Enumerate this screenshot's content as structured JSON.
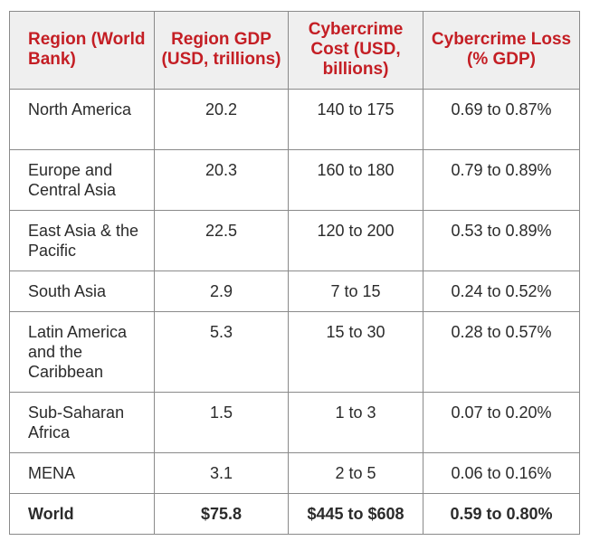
{
  "table": {
    "headers": [
      "Region (World Bank)",
      "Region GDP (USD, trillions)",
      "Cybercrime Cost (USD, billions)",
      "Cybercrime Loss (% GDP)"
    ],
    "rows": [
      {
        "region": "North America",
        "gdp": "20.2",
        "cost": "140 to 175",
        "loss": "0.69 to 0.87%"
      },
      {
        "region": "Europe and Central Asia",
        "gdp": "20.3",
        "cost": "160 to 180",
        "loss": "0.79 to 0.89%"
      },
      {
        "region": "East Asia & the Pacific",
        "gdp": "22.5",
        "cost": "120 to 200",
        "loss": "0.53 to 0.89%"
      },
      {
        "region": "South Asia",
        "gdp": "2.9",
        "cost": "7 to 15",
        "loss": "0.24 to 0.52%"
      },
      {
        "region": "Latin America and the Caribbean",
        "gdp": "5.3",
        "cost": "15 to 30",
        "loss": "0.28 to 0.57%"
      },
      {
        "region": "Sub-Saharan Africa",
        "gdp": "1.5",
        "cost": "1 to 3",
        "loss": "0.07 to 0.20%"
      },
      {
        "region": "MENA",
        "gdp": "3.1",
        "cost": "2 to 5",
        "loss": "0.06 to 0.16%"
      }
    ],
    "total": {
      "region": "World",
      "gdp": "$75.8",
      "cost": "$445 to $608",
      "loss": "0.59 to 0.80%"
    }
  },
  "colors": {
    "header_text": "#c41e24",
    "header_bg": "#efefef",
    "border": "#8a8a8a",
    "body_text": "#2b2b2b"
  }
}
